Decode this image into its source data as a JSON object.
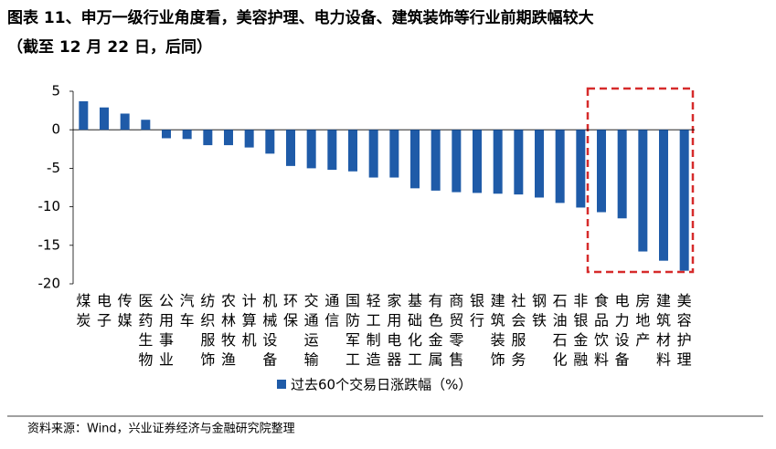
{
  "chart_data": {
    "type": "bar",
    "title": "图表 11、申万一级行业角度看，美容护理、电力设备、建筑装饰等行业前期跌幅较大",
    "subtitle": "（截至 12 月 22 日，后同）",
    "categories": [
      "煤炭",
      "电子",
      "传媒",
      "医药生物",
      "公用事业",
      "汽车",
      "纺织服饰",
      "农林牧渔",
      "计算机",
      "机械设备",
      "环保",
      "交通运输",
      "通信",
      "国防军工",
      "轻工制造",
      "家用电器",
      "基础化工",
      "有色金属",
      "商贸零售",
      "银行",
      "建筑装饰",
      "社会服务",
      "钢铁",
      "石油石化",
      "非银金融",
      "食品饮料",
      "电力设备",
      "房地产",
      "建筑材料",
      "美容护理"
    ],
    "series": [
      {
        "name": "过去60个交易日涨跌幅（%）",
        "color": "#1f5ba8",
        "values": [
          3.7,
          2.9,
          2.1,
          1.3,
          -1.1,
          -1.2,
          -2.0,
          -2.0,
          -2.3,
          -3.1,
          -4.7,
          -5.0,
          -5.2,
          -5.4,
          -6.2,
          -6.2,
          -7.6,
          -7.9,
          -8.1,
          -8.2,
          -8.3,
          -8.4,
          -8.8,
          -9.5,
          -10.1,
          -10.7,
          -11.5,
          -15.8,
          -17.0,
          -18.3
        ]
      }
    ],
    "ylim": [
      -20,
      5
    ],
    "yticks": [
      5,
      0,
      -5,
      -10,
      -15,
      -20
    ],
    "source": "资料来源：Wind，兴业证券经济与金融研究院整理"
  }
}
